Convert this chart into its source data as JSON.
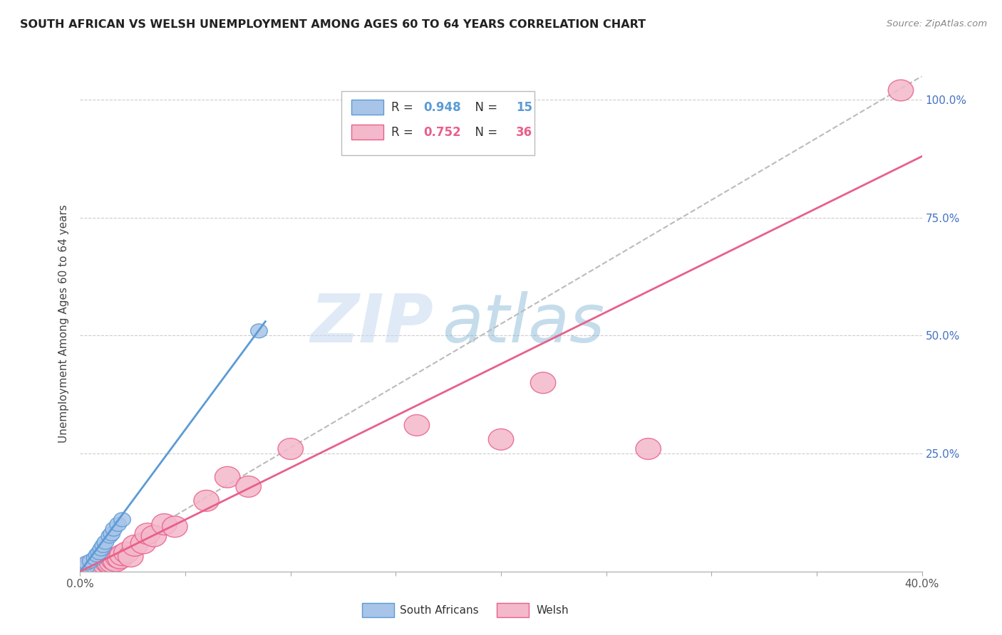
{
  "title": "SOUTH AFRICAN VS WELSH UNEMPLOYMENT AMONG AGES 60 TO 64 YEARS CORRELATION CHART",
  "source": "Source: ZipAtlas.com",
  "ylabel": "Unemployment Among Ages 60 to 64 years",
  "xlim": [
    0.0,
    0.4
  ],
  "ylim": [
    0.0,
    1.05
  ],
  "xticks": [
    0.0,
    0.05,
    0.1,
    0.15,
    0.2,
    0.25,
    0.3,
    0.35,
    0.4
  ],
  "xticklabels": [
    "0.0%",
    "",
    "",
    "",
    "",
    "",
    "",
    "",
    "40.0%"
  ],
  "yticks": [
    0.0,
    0.25,
    0.5,
    0.75,
    1.0
  ],
  "right_yticklabels": [
    "",
    "25.0%",
    "50.0%",
    "75.0%",
    "100.0%"
  ],
  "title_color": "#222222",
  "source_color": "#888888",
  "ylabel_color": "#444444",
  "right_axis_color": "#4472c4",
  "grid_color": "#cccccc",
  "watermark_zip": "ZIP",
  "watermark_atlas": "atlas",
  "sa_color": "#a8c4e8",
  "sa_edge_color": "#5b9bd5",
  "welsh_color": "#f4b8cb",
  "welsh_edge_color": "#e8608a",
  "diag_color": "#bbbbbb",
  "legend_sa_r": "0.948",
  "legend_sa_n": "15",
  "legend_welsh_r": "0.752",
  "legend_welsh_n": "36",
  "sa_x": [
    0.003,
    0.003,
    0.005,
    0.007,
    0.008,
    0.009,
    0.01,
    0.011,
    0.012,
    0.014,
    0.015,
    0.016,
    0.018,
    0.02,
    0.085
  ],
  "sa_y": [
    0.01,
    0.018,
    0.022,
    0.028,
    0.035,
    0.04,
    0.048,
    0.055,
    0.062,
    0.075,
    0.08,
    0.09,
    0.1,
    0.11,
    0.51
  ],
  "welsh_x": [
    0.002,
    0.003,
    0.004,
    0.005,
    0.006,
    0.007,
    0.008,
    0.009,
    0.01,
    0.011,
    0.012,
    0.013,
    0.014,
    0.015,
    0.016,
    0.017,
    0.018,
    0.019,
    0.02,
    0.022,
    0.024,
    0.026,
    0.03,
    0.032,
    0.035,
    0.04,
    0.045,
    0.06,
    0.07,
    0.08,
    0.1,
    0.16,
    0.2,
    0.22,
    0.27,
    0.39
  ],
  "welsh_y": [
    0.005,
    0.008,
    0.005,
    0.01,
    0.008,
    0.01,
    0.015,
    0.012,
    0.015,
    0.01,
    0.015,
    0.02,
    0.018,
    0.02,
    0.025,
    0.022,
    0.03,
    0.028,
    0.035,
    0.04,
    0.032,
    0.055,
    0.06,
    0.08,
    0.075,
    0.1,
    0.095,
    0.15,
    0.2,
    0.18,
    0.26,
    0.31,
    0.28,
    0.4,
    0.26,
    1.02
  ],
  "sa_line_x": [
    0.0,
    0.088
  ],
  "sa_line_y": [
    0.0,
    0.53
  ],
  "welsh_line_x": [
    0.0,
    0.4
  ],
  "welsh_line_y": [
    0.0,
    0.88
  ],
  "diag_line_x": [
    0.0,
    0.4
  ],
  "diag_line_y": [
    0.0,
    1.05
  ]
}
